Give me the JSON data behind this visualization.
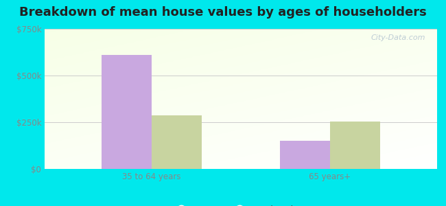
{
  "title": "Breakdown of mean house values by ages of householders",
  "categories": [
    "35 to 64 years",
    "65 years+"
  ],
  "series": {
    "Peever": [
      612000,
      150000
    ],
    "South Dakota": [
      285000,
      252000
    ]
  },
  "bar_colors": {
    "Peever": "#c9a8e0",
    "South Dakota": "#c8d4a0"
  },
  "ylim": [
    0,
    750000
  ],
  "yticks": [
    0,
    250000,
    500000,
    750000
  ],
  "ytick_labels": [
    "$0",
    "$250k",
    "$500k",
    "$750k"
  ],
  "outer_color": "#00e8ec",
  "title_fontsize": 13,
  "bar_width": 0.28,
  "watermark": "City-Data.com",
  "tick_color": "#888888",
  "grid_color": "#cccccc"
}
